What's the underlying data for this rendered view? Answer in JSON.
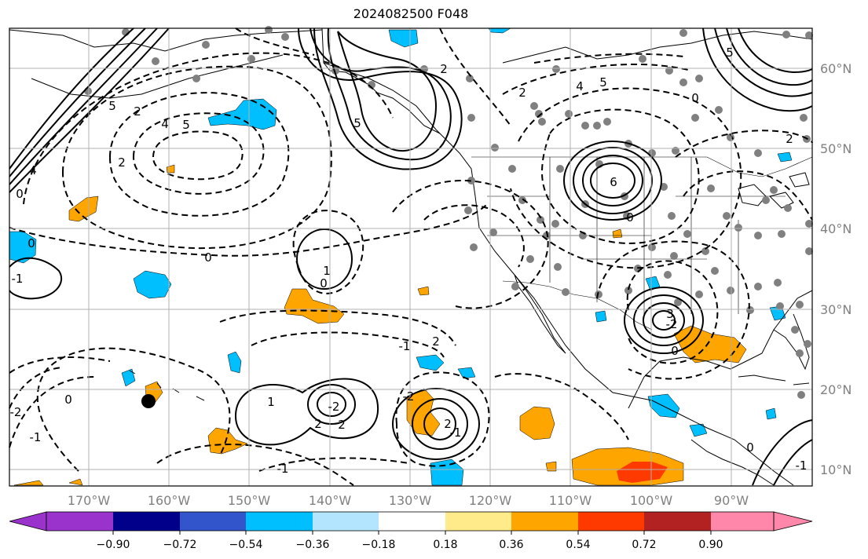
{
  "title": "2024082500 F048",
  "map": {
    "lon_labels": [
      "170°W",
      "160°W",
      "150°W",
      "140°W",
      "130°W",
      "120°W",
      "110°W",
      "100°W",
      "90°W"
    ],
    "lat_labels": [
      "60°N",
      "50°N",
      "40°N",
      "30°N",
      "20°N",
      "10°N"
    ],
    "contour_labels": [
      "5",
      "2",
      "4",
      "5",
      "0",
      "2",
      "4",
      "5",
      "2",
      "6",
      "0",
      "1",
      "0",
      "0",
      "-1",
      "3",
      "0",
      "1",
      "-1",
      "-2",
      "-2",
      "2",
      "-2",
      "2",
      "-1",
      "2",
      "2",
      "-1",
      "-2",
      "0",
      "-1",
      "-1",
      "2",
      "0",
      "5",
      "4",
      "5",
      "0",
      "2",
      "0"
    ]
  },
  "colorbar": {
    "tick_labels": [
      "−0.90",
      "−0.72",
      "−0.54",
      "−0.36",
      "−0.18",
      "0.18",
      "0.36",
      "0.54",
      "0.72",
      "0.90"
    ],
    "colors": [
      "#9933cc",
      "#00008b",
      "#3355cc",
      "#00bfff",
      "#b3e5ff",
      "#ffffff",
      "#ffeb8a",
      "#ffa500",
      "#ff3a00",
      "#b22222",
      "#ff88aa"
    ]
  },
  "colors": {
    "negative_fill": "#00bfff",
    "positive_fill": "#ffa500",
    "strong_positive_fill": "#ff3a00",
    "station_dot": "#808080",
    "grid": "#b0b0b0"
  }
}
